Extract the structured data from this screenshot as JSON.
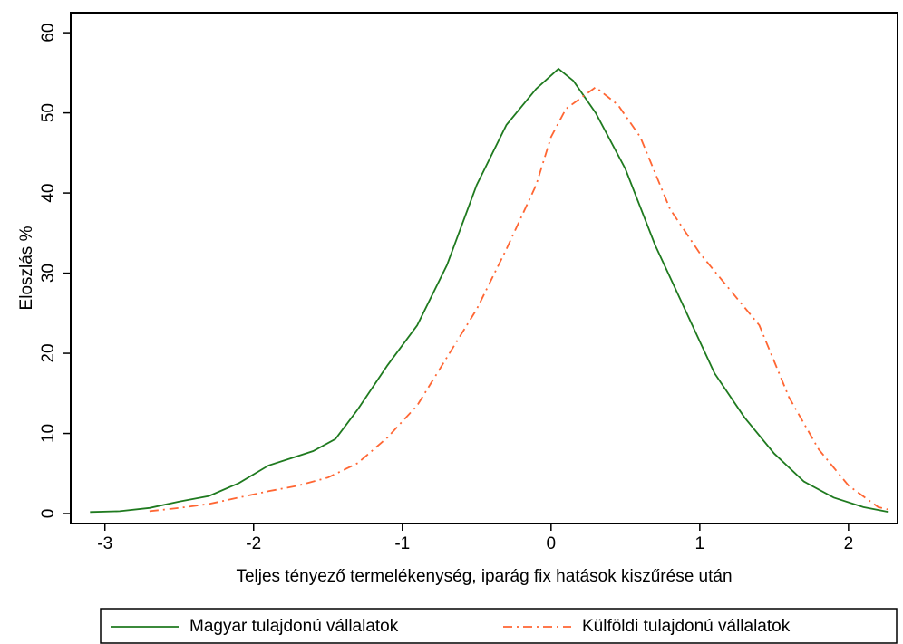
{
  "chart_data": {
    "type": "line",
    "ylabel": "Eloszlás %",
    "xlabel": "Teljes tényező termelékenység, iparág fix hatások kiszűrése után",
    "xlim": [
      -3.23,
      2.33
    ],
    "xticks": [
      -3,
      -2,
      -1,
      0,
      1,
      2
    ],
    "ylim": [
      -1.24,
      62.5
    ],
    "yticks": [
      0,
      10,
      20,
      30,
      40,
      50,
      60
    ],
    "legend": "bottom",
    "series": [
      {
        "name": "Magyar tulajdonú vállalatok",
        "color": "#1f7a1f",
        "style": "solid",
        "x": [
          -3.1,
          -2.9,
          -2.7,
          -2.5,
          -2.3,
          -2.1,
          -1.9,
          -1.75,
          -1.6,
          -1.45,
          -1.3,
          -1.1,
          -0.9,
          -0.7,
          -0.5,
          -0.3,
          -0.1,
          0.05,
          0.15,
          0.3,
          0.5,
          0.7,
          0.9,
          1.1,
          1.3,
          1.5,
          1.7,
          1.9,
          2.1,
          2.27
        ],
        "values": [
          0.2,
          0.3,
          0.7,
          1.5,
          2.2,
          3.8,
          6,
          6.9,
          7.8,
          9.3,
          13,
          18.5,
          23.5,
          31,
          41,
          48.5,
          53,
          55.5,
          54,
          50,
          43,
          33.5,
          25.5,
          17.5,
          12,
          7.5,
          4,
          2,
          0.8,
          0.2
        ]
      },
      {
        "name": "Külföldi tulajdonú vállalatok",
        "color": "#ff6633",
        "style": "dashdot",
        "x": [
          -2.7,
          -2.5,
          -2.3,
          -2.1,
          -1.9,
          -1.7,
          -1.5,
          -1.3,
          -1.1,
          -0.9,
          -0.7,
          -0.5,
          -0.3,
          -0.1,
          0,
          0.1,
          0.3,
          0.45,
          0.6,
          0.8,
          1.0,
          1.2,
          1.4,
          1.6,
          1.8,
          2.0,
          2.2,
          2.27
        ],
        "values": [
          0.3,
          0.7,
          1.2,
          2,
          2.8,
          3.5,
          4.5,
          6.3,
          9.5,
          13.5,
          19.5,
          25.5,
          33,
          41,
          47,
          50.5,
          53.2,
          51,
          47,
          38,
          32.5,
          28,
          23.5,
          14.5,
          8,
          3.5,
          0.8,
          0.5
        ]
      }
    ]
  }
}
